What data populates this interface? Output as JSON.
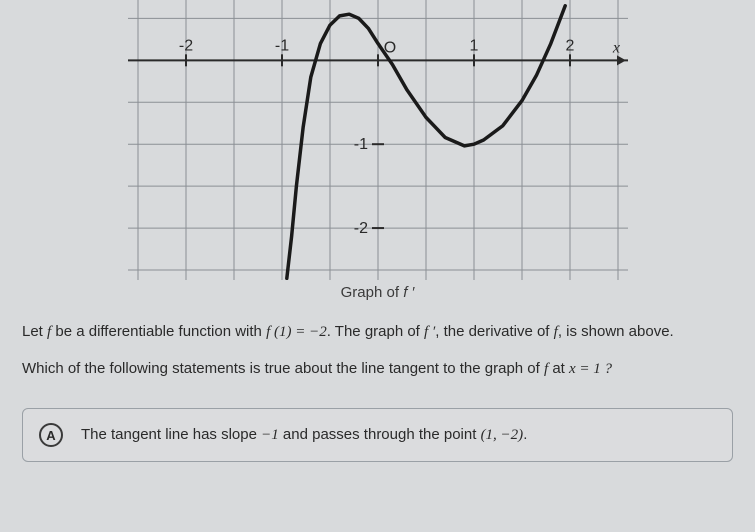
{
  "graph": {
    "type": "line",
    "caption_prefix": "Graph of ",
    "caption_func": "f ′",
    "x_axis_label": "x",
    "xlim": [
      -2.5,
      2.5
    ],
    "ylim": [
      -2.5,
      0.6
    ],
    "xtick_labels": [
      "-2",
      "-1",
      "O",
      "1",
      "2"
    ],
    "xtick_positions": [
      -2,
      -1,
      0,
      1,
      2
    ],
    "ytick_labels": [
      "-1",
      "-2"
    ],
    "ytick_positions": [
      -1,
      -2
    ],
    "grid_color": "#8a8f94",
    "axis_color": "#2a2a2a",
    "curve_color": "#1a1a1a",
    "curve_width": 3.5,
    "background_color": "#d8dadc",
    "axis_width": 2,
    "grid_width": 1,
    "tick_fontsize": 16,
    "curve_points": [
      [
        -0.95,
        -2.6
      ],
      [
        -0.9,
        -2.1
      ],
      [
        -0.85,
        -1.5
      ],
      [
        -0.78,
        -0.8
      ],
      [
        -0.7,
        -0.2
      ],
      [
        -0.6,
        0.2
      ],
      [
        -0.5,
        0.42
      ],
      [
        -0.4,
        0.53
      ],
      [
        -0.3,
        0.55
      ],
      [
        -0.2,
        0.5
      ],
      [
        -0.1,
        0.38
      ],
      [
        0,
        0.2
      ],
      [
        0.15,
        -0.05
      ],
      [
        0.3,
        -0.35
      ],
      [
        0.5,
        -0.68
      ],
      [
        0.7,
        -0.92
      ],
      [
        0.9,
        -1.02
      ],
      [
        1.0,
        -1.0
      ],
      [
        1.1,
        -0.95
      ],
      [
        1.3,
        -0.78
      ],
      [
        1.5,
        -0.48
      ],
      [
        1.65,
        -0.18
      ],
      [
        1.8,
        0.2
      ],
      [
        1.9,
        0.5
      ],
      [
        1.95,
        0.65
      ]
    ]
  },
  "question": {
    "line1_pre": "Let ",
    "line1_f": "f",
    "line1_mid1": " be a differentiable function with ",
    "line1_eq": "f (1) = −2",
    "line1_mid2": ". The graph of ",
    "line1_fp": "f ′",
    "line1_mid3": ", the derivative of ",
    "line1_f2": "f",
    "line1_end": ", is shown above.",
    "line2_pre": "Which of the following statements is true about the line tangent to the graph of ",
    "line2_f": "f",
    "line2_mid": " at ",
    "line2_eq": "x = 1 ?"
  },
  "answer": {
    "choice_letter": "A",
    "text_pre": "The tangent line has slope ",
    "text_slope": "−1",
    "text_mid": " and passes through the point ",
    "text_point": "(1, −2)",
    "text_end": "."
  }
}
